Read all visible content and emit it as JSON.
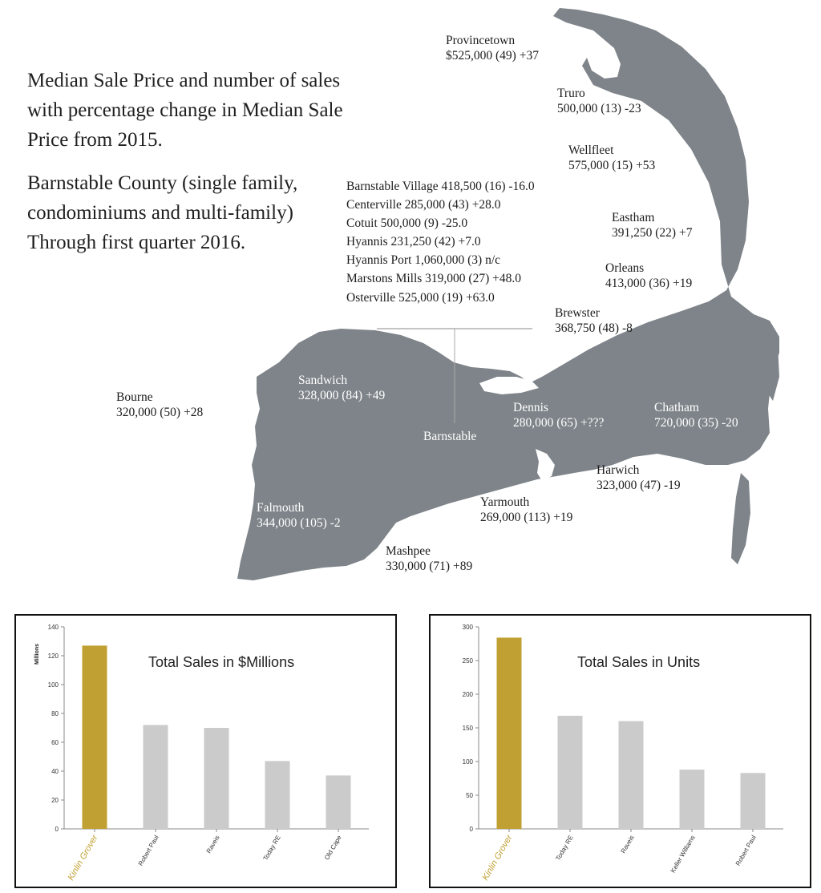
{
  "colors": {
    "land": "#7e8489",
    "highlight": "#c1a033",
    "other_bar": "#cbcbcb",
    "axis": "#888888"
  },
  "intro": {
    "para1": "Median Sale Price and number of sales with percentage change in Median Sale Price from 2015.",
    "para2": "Barnstable County (single family, condominiums and multi-family) Through first quarter 2016."
  },
  "towns": {
    "provincetown": {
      "name": "Provincetown",
      "stats": "$525,000 (49) +37"
    },
    "truro": {
      "name": "Truro",
      "stats": "500,000 (13) -23"
    },
    "wellfleet": {
      "name": "Wellfleet",
      "stats": "575,000 (15) +53"
    },
    "eastham": {
      "name": "Eastham",
      "stats": "391,250 (22) +7"
    },
    "orleans": {
      "name": "Orleans",
      "stats": "413,000 (36) +19"
    },
    "brewster": {
      "name": "Brewster",
      "stats": "368,750 (48) -8"
    },
    "sandwich": {
      "name": "Sandwich",
      "stats": "328,000 (84)  +49"
    },
    "bourne": {
      "name": "Bourne",
      "stats": "320,000 (50)  +28"
    },
    "barnstable": {
      "name": "Barnstable"
    },
    "dennis": {
      "name": "Dennis",
      "stats": "280,000 (65) +???"
    },
    "chatham": {
      "name": "Chatham",
      "stats": "720,000 (35) -20"
    },
    "harwich": {
      "name": "Harwich",
      "stats": "323,000 (47) -19"
    },
    "yarmouth": {
      "name": "Yarmouth",
      "stats": "269,000 (113) +19"
    },
    "falmouth": {
      "name": "Falmouth",
      "stats": "344,000 (105) -2"
    },
    "mashpee": {
      "name": "Mashpee",
      "stats": "330,000 (71) +89"
    }
  },
  "barnstable_villages": [
    "Barnstable Village  418,500 (16) -16.0",
    "Centerville  285,000 (43) +28.0",
    "Cotuit  500,000 (9) -25.0",
    "Hyannis  231,250 (42) +7.0",
    "Hyannis Port  1,060,000 (3) n/c",
    "Marstons Mills  319,000 (27) +48.0",
    "Osterville  525,000 (19) +63.0"
  ],
  "chart_data": [
    {
      "type": "bar",
      "title": "Total Sales in $Millions",
      "ylabel": "Millions",
      "xlabel": "",
      "ylim": [
        0,
        140
      ],
      "yticks": [
        "0",
        "20",
        "40",
        "60",
        "80",
        "100",
        "120",
        "140"
      ],
      "categories": [
        "Kinlin Grover",
        "Robert Paul",
        "Raveis",
        "Today RE",
        "Old Cape"
      ],
      "values": [
        127,
        72,
        70,
        47,
        37
      ],
      "highlight_index": 0,
      "grid": false,
      "legend": "none"
    },
    {
      "type": "bar",
      "title": "Total Sales in Units",
      "ylabel": "",
      "xlabel": "",
      "ylim": [
        0,
        300
      ],
      "yticks": [
        "0",
        "50",
        "100",
        "150",
        "200",
        "250",
        "300"
      ],
      "categories": [
        "Kinlin Grover",
        "Today RE",
        "Raveis",
        "Keller Williams",
        "Robert Paul"
      ],
      "values": [
        284,
        168,
        160,
        88,
        83
      ],
      "highlight_index": 0,
      "grid": false,
      "legend": "none"
    }
  ]
}
